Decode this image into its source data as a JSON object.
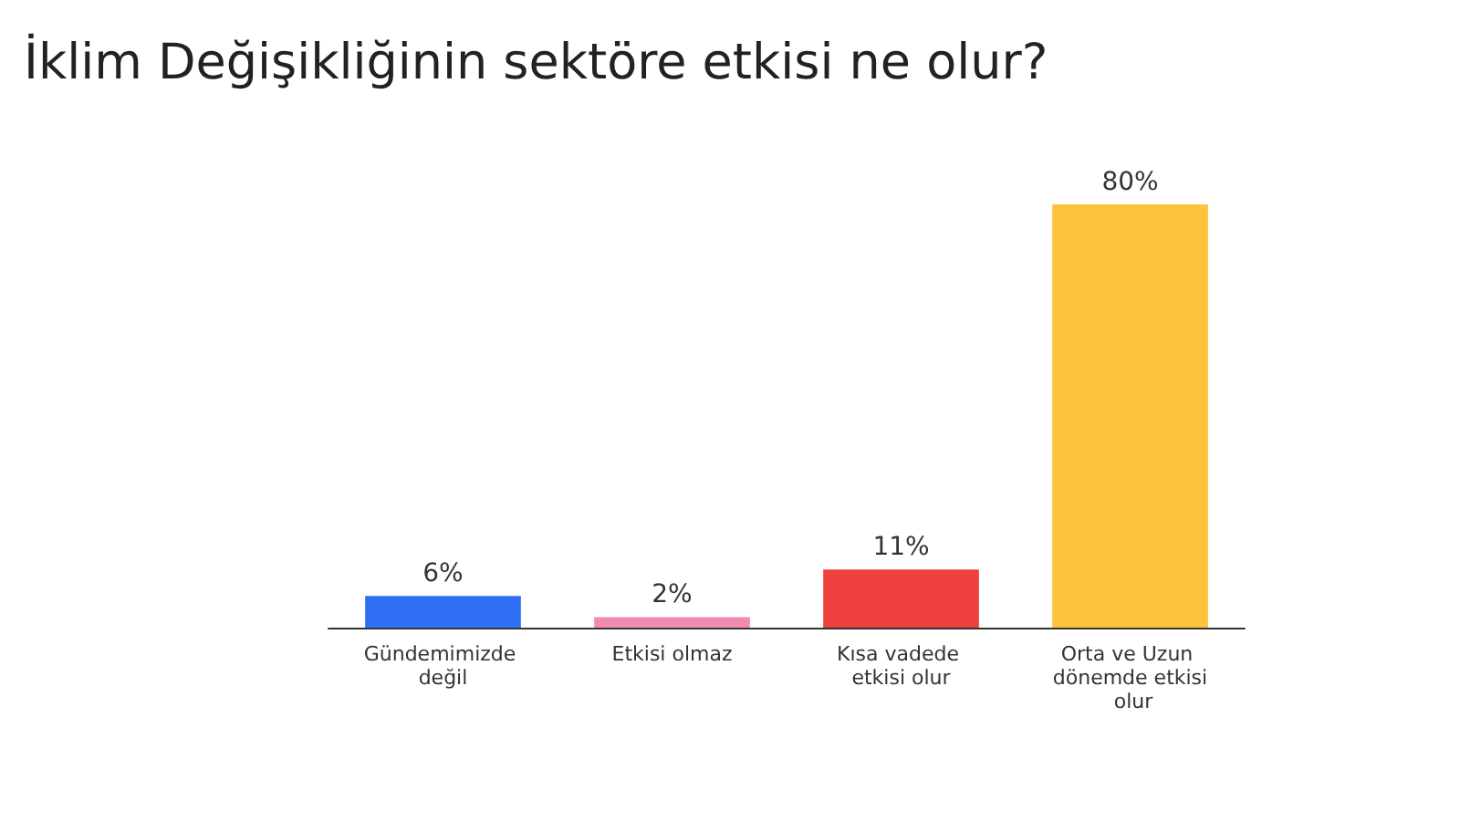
{
  "chart_data": {
    "type": "bar",
    "title": "İklim Değişikliğinin sektöre etkisi ne olur?",
    "categories": [
      "Gündemimizde değil",
      "Etkisi olmaz",
      "Kısa vadede etkisi olur",
      "Orta ve Uzun dönemde etkisi olur"
    ],
    "values": [
      6,
      2,
      11,
      80
    ],
    "colors": [
      "#2f6ff5",
      "#f08cb4",
      "#f04141",
      "#fbc43a"
    ],
    "value_labels": [
      "6%",
      "2%",
      "11%",
      "80%"
    ]
  }
}
